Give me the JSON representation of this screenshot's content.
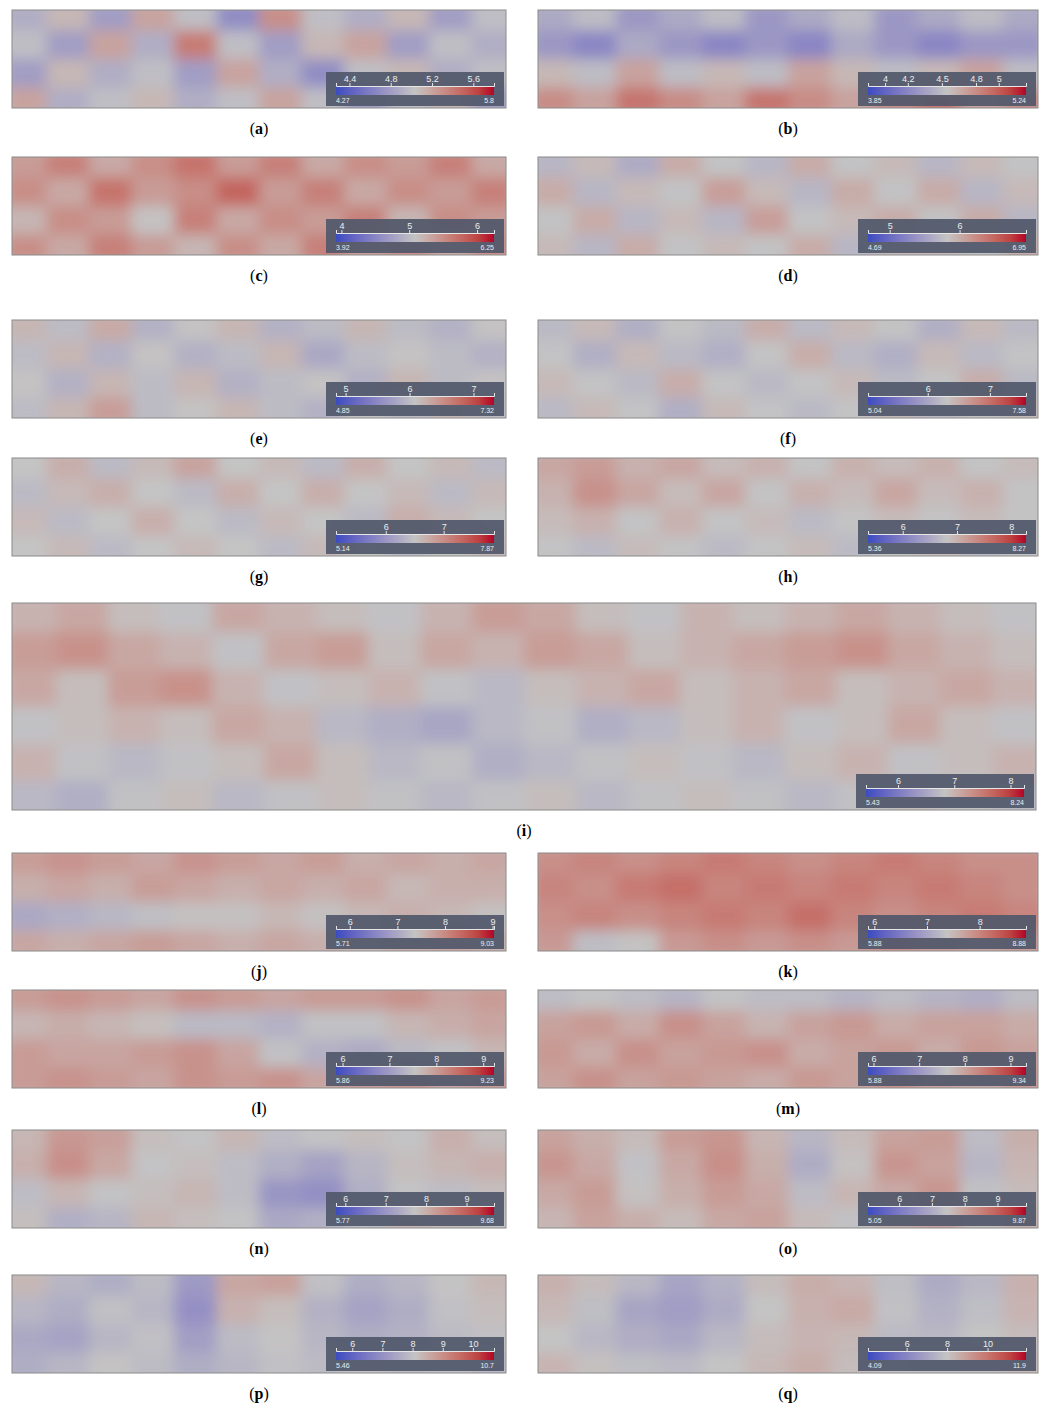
{
  "chart_data": [
    {
      "type": "heatmap",
      "title": "(a)",
      "tick_labels": false,
      "cells": [
        [
          4.9,
          5.1,
          4.8,
          5.2,
          5.0,
          4.7,
          5.3,
          5.0,
          4.9,
          5.1,
          4.8,
          5.0
        ],
        [
          5.0,
          4.8,
          5.2,
          4.9,
          5.4,
          5.0,
          4.8,
          5.1,
          5.2,
          4.8,
          5.0,
          4.9
        ],
        [
          4.8,
          5.1,
          4.9,
          5.0,
          4.8,
          5.2,
          4.9,
          4.7,
          5.0,
          5.1,
          4.9,
          5.0
        ],
        [
          5.2,
          4.9,
          5.0,
          5.1,
          4.9,
          5.0,
          5.2,
          5.0,
          4.8,
          5.0,
          5.1,
          4.8
        ]
      ],
      "colorbar": {
        "range": [
          4.27,
          5.8
        ],
        "ticks": [
          4.4,
          4.8,
          5.2,
          5.6
        ]
      }
    },
    {
      "type": "heatmap",
      "title": "(b)",
      "tick_labels": false,
      "cells": [
        [
          4.4,
          4.5,
          4.3,
          4.4,
          4.5,
          4.3,
          4.4,
          4.5,
          4.3,
          4.4,
          4.5,
          4.4
        ],
        [
          4.3,
          4.2,
          4.4,
          4.3,
          4.2,
          4.3,
          4.2,
          4.4,
          4.3,
          4.2,
          4.3,
          4.3
        ],
        [
          4.6,
          4.5,
          4.7,
          4.5,
          4.6,
          4.5,
          4.7,
          4.6,
          4.5,
          4.6,
          4.7,
          4.5
        ],
        [
          4.8,
          4.7,
          4.9,
          4.8,
          4.7,
          4.9,
          4.8,
          4.7,
          4.8,
          4.9,
          4.7,
          4.8
        ]
      ],
      "colorbar": {
        "range": [
          3.85,
          5.24
        ],
        "ticks": [
          4,
          4.2,
          4.5,
          4.8,
          5
        ]
      }
    },
    {
      "type": "heatmap",
      "title": "(c)",
      "tick_labels": false,
      "cells": [
        [
          5.4,
          5.6,
          5.3,
          5.5,
          5.7,
          5.4,
          5.6,
          5.3,
          5.5,
          5.4,
          5.6,
          5.3
        ],
        [
          5.5,
          5.3,
          5.7,
          5.4,
          5.5,
          5.8,
          5.4,
          5.6,
          5.3,
          5.5,
          5.4,
          5.6
        ],
        [
          5.2,
          5.5,
          5.4,
          5.1,
          5.6,
          5.3,
          5.5,
          5.4,
          5.6,
          5.2,
          5.5,
          5.4
        ],
        [
          5.5,
          5.3,
          5.6,
          5.4,
          5.2,
          5.5,
          5.3,
          5.6,
          5.4,
          5.5,
          5.3,
          5.5
        ]
      ],
      "colorbar": {
        "range": [
          3.92,
          6.25
        ],
        "ticks": [
          4,
          5,
          6
        ]
      }
    },
    {
      "type": "heatmap",
      "title": "(d)",
      "tick_labels": false,
      "cells": [
        [
          5.7,
          5.9,
          5.6,
          6.0,
          5.8,
          5.7,
          6.0,
          5.8,
          5.9,
          5.7,
          5.9,
          5.8
        ],
        [
          6.0,
          5.7,
          5.9,
          5.8,
          6.1,
          5.9,
          5.7,
          6.0,
          5.8,
          6.0,
          5.7,
          5.9
        ],
        [
          5.8,
          6.0,
          5.7,
          5.9,
          5.7,
          6.1,
          5.8,
          5.9,
          6.0,
          5.8,
          6.0,
          5.7
        ],
        [
          5.9,
          5.7,
          6.0,
          5.8,
          5.9,
          5.8,
          6.0,
          5.7,
          5.9,
          5.9,
          5.8,
          6.0
        ]
      ],
      "colorbar": {
        "range": [
          4.69,
          6.95
        ],
        "ticks": [
          5,
          6
        ]
      }
    },
    {
      "type": "heatmap",
      "title": "(e)",
      "tick_labels": false,
      "cells": [
        [
          6.2,
          6.0,
          6.3,
          5.9,
          6.1,
          6.2,
          5.9,
          6.0,
          6.2,
          6.0,
          5.9,
          6.1
        ],
        [
          6.0,
          6.2,
          5.9,
          6.1,
          5.9,
          6.0,
          6.2,
          5.8,
          6.0,
          6.1,
          6.0,
          5.9
        ],
        [
          6.1,
          5.9,
          6.2,
          6.0,
          6.2,
          5.9,
          6.0,
          6.1,
          5.9,
          6.2,
          6.0,
          6.1
        ],
        [
          6.0,
          6.2,
          6.4,
          6.0,
          6.1,
          6.2,
          6.0,
          5.9,
          6.1,
          6.0,
          6.2,
          6.0
        ]
      ],
      "colorbar": {
        "range": [
          4.85,
          7.32
        ],
        "ticks": [
          5,
          6,
          7
        ]
      }
    },
    {
      "type": "heatmap",
      "title": "(f)",
      "tick_labels": false,
      "cells": [
        [
          6.2,
          6.4,
          6.1,
          6.3,
          6.2,
          6.5,
          6.2,
          6.4,
          6.3,
          6.1,
          6.4,
          6.2
        ],
        [
          6.3,
          6.1,
          6.4,
          6.2,
          6.1,
          6.3,
          6.5,
          6.2,
          6.1,
          6.4,
          6.2,
          6.3
        ],
        [
          6.4,
          6.3,
          6.2,
          6.5,
          6.3,
          6.2,
          6.3,
          6.4,
          6.2,
          6.3,
          6.5,
          6.2
        ],
        [
          6.2,
          6.4,
          6.3,
          6.1,
          6.4,
          6.3,
          6.2,
          6.3,
          6.4,
          6.2,
          6.3,
          6.4
        ]
      ],
      "colorbar": {
        "range": [
          5.04,
          7.58
        ],
        "ticks": [
          6,
          7
        ]
      }
    },
    {
      "type": "heatmap",
      "title": "(g)",
      "tick_labels": false,
      "cells": [
        [
          6.5,
          6.7,
          6.4,
          6.6,
          6.8,
          6.5,
          6.6,
          6.4,
          6.7,
          6.5,
          6.6,
          6.4
        ],
        [
          6.4,
          6.6,
          6.7,
          6.5,
          6.4,
          6.7,
          6.5,
          6.7,
          6.5,
          6.6,
          6.4,
          6.6
        ],
        [
          6.6,
          6.4,
          6.5,
          6.7,
          6.5,
          6.4,
          6.6,
          6.5,
          6.4,
          6.7,
          6.6,
          6.5
        ],
        [
          6.5,
          6.6,
          6.4,
          6.5,
          6.6,
          6.5,
          6.4,
          6.6,
          6.5,
          6.4,
          6.5,
          6.6
        ]
      ],
      "colorbar": {
        "range": [
          5.14,
          7.87
        ],
        "ticks": [
          6,
          7
        ]
      }
    },
    {
      "type": "heatmap",
      "title": "(h)",
      "tick_labels": false,
      "cells": [
        [
          7.1,
          7.2,
          7.0,
          7.1,
          6.9,
          7.0,
          6.8,
          7.0,
          6.9,
          7.0,
          6.8,
          6.9
        ],
        [
          7.0,
          7.3,
          7.1,
          6.9,
          7.1,
          6.8,
          7.0,
          6.9,
          7.1,
          6.9,
          7.0,
          6.8
        ],
        [
          6.9,
          7.0,
          6.8,
          7.0,
          6.8,
          6.9,
          6.7,
          6.8,
          6.9,
          6.8,
          6.9,
          6.8
        ],
        [
          6.8,
          6.7,
          6.9,
          6.8,
          6.7,
          6.8,
          6.9,
          6.7,
          6.8,
          6.9,
          6.7,
          6.8
        ]
      ],
      "colorbar": {
        "range": [
          5.36,
          8.27
        ],
        "ticks": [
          6,
          7,
          8
        ]
      }
    },
    {
      "type": "heatmap",
      "title": "(i)",
      "tick_labels": false,
      "cells": [
        [
          7.0,
          7.1,
          6.9,
          6.8,
          7.1,
          7.0,
          6.9,
          6.8,
          7.0,
          7.2,
          7.1,
          6.9,
          6.8,
          7.0,
          6.9,
          7.0,
          7.1,
          7.0,
          6.9,
          6.8
        ],
        [
          7.2,
          7.3,
          7.1,
          7.0,
          6.8,
          7.1,
          7.2,
          6.9,
          7.1,
          7.0,
          7.2,
          7.1,
          6.9,
          7.0,
          7.1,
          7.2,
          7.3,
          7.1,
          7.0,
          6.9
        ],
        [
          7.1,
          6.9,
          7.2,
          7.3,
          7.0,
          6.8,
          6.9,
          7.0,
          6.8,
          6.7,
          6.9,
          7.0,
          7.1,
          6.9,
          7.0,
          7.1,
          6.9,
          7.0,
          7.1,
          7.0
        ],
        [
          6.8,
          6.9,
          7.0,
          6.9,
          7.1,
          7.0,
          6.7,
          6.6,
          6.5,
          6.7,
          6.8,
          6.6,
          6.7,
          6.9,
          7.0,
          6.8,
          6.9,
          7.1,
          6.9,
          6.8
        ],
        [
          7.0,
          6.8,
          6.7,
          6.8,
          6.9,
          7.1,
          6.9,
          6.7,
          6.8,
          6.6,
          6.7,
          6.8,
          6.9,
          6.8,
          6.7,
          6.9,
          7.0,
          6.8,
          6.9,
          7.0
        ],
        [
          6.7,
          6.6,
          6.8,
          6.9,
          6.7,
          6.8,
          6.9,
          6.8,
          6.7,
          6.8,
          6.9,
          6.7,
          6.8,
          6.9,
          6.8,
          6.7,
          6.8,
          6.9,
          6.8,
          6.7
        ]
      ],
      "colorbar": {
        "range": [
          5.43,
          8.24
        ],
        "ticks": [
          6,
          7,
          8
        ]
      }
    },
    {
      "type": "heatmap",
      "title": "(j)",
      "tick_labels": false,
      "cells": [
        [
          7.8,
          7.9,
          7.8,
          7.7,
          7.9,
          7.8,
          7.7,
          7.8,
          7.6,
          7.7,
          7.6,
          7.7
        ],
        [
          7.6,
          7.7,
          7.6,
          7.8,
          7.7,
          7.6,
          7.7,
          7.6,
          7.7,
          7.5,
          7.6,
          7.6
        ],
        [
          7.0,
          7.1,
          7.2,
          7.3,
          7.4,
          7.4,
          7.5,
          7.4,
          7.5,
          7.6,
          7.5,
          7.4
        ],
        [
          7.7,
          7.6,
          7.7,
          7.8,
          7.7,
          7.6,
          7.7,
          7.6,
          7.5,
          7.6,
          7.7,
          7.6
        ]
      ],
      "colorbar": {
        "range": [
          5.71,
          9.03
        ],
        "ticks": [
          6,
          7,
          8,
          9
        ]
      }
    },
    {
      "type": "heatmap",
      "title": "(k)",
      "tick_labels": false,
      "cells": [
        [
          7.9,
          8.0,
          7.9,
          8.0,
          8.1,
          8.0,
          7.9,
          8.0,
          8.1,
          8.0,
          7.9,
          7.9
        ],
        [
          8.0,
          7.9,
          8.1,
          8.2,
          8.0,
          8.1,
          8.0,
          8.1,
          8.0,
          8.1,
          8.0,
          7.9
        ],
        [
          7.9,
          8.0,
          7.9,
          8.0,
          8.1,
          8.0,
          8.2,
          8.0,
          7.9,
          8.0,
          8.1,
          8.0
        ],
        [
          7.8,
          7.3,
          7.4,
          7.8,
          7.9,
          7.8,
          7.9,
          7.8,
          7.9,
          7.8,
          7.7,
          7.8
        ]
      ],
      "colorbar": {
        "range": [
          5.88,
          8.88
        ],
        "ticks": [
          6,
          7,
          8
        ]
      }
    },
    {
      "type": "heatmap",
      "title": "(l)",
      "tick_labels": false,
      "cells": [
        [
          8.0,
          8.1,
          8.0,
          7.9,
          8.1,
          8.0,
          7.9,
          8.0,
          8.0,
          8.1,
          7.9,
          8.0
        ],
        [
          7.7,
          7.8,
          7.7,
          7.6,
          7.4,
          7.4,
          7.3,
          7.5,
          7.5,
          7.7,
          7.8,
          7.9
        ],
        [
          8.0,
          7.9,
          7.9,
          8.0,
          8.1,
          7.9,
          7.5,
          7.3,
          7.2,
          7.4,
          7.5,
          7.7
        ],
        [
          8.0,
          8.1,
          8.0,
          7.9,
          8.1,
          8.0,
          8.1,
          7.9,
          8.0,
          8.1,
          7.9,
          8.0
        ]
      ],
      "colorbar": {
        "range": [
          5.86,
          9.23
        ],
        "ticks": [
          6,
          7,
          8,
          9
        ]
      }
    },
    {
      "type": "heatmap",
      "title": "(m)",
      "tick_labels": false,
      "cells": [
        [
          7.5,
          7.6,
          7.5,
          7.4,
          7.6,
          7.5,
          7.5,
          7.4,
          7.5,
          7.4,
          7.3,
          7.5
        ],
        [
          8.0,
          8.1,
          7.9,
          8.2,
          8.0,
          7.8,
          8.0,
          8.1,
          7.9,
          8.0,
          8.0,
          7.9
        ],
        [
          8.1,
          7.9,
          8.2,
          8.0,
          8.1,
          8.2,
          7.9,
          8.0,
          8.1,
          7.9,
          8.1,
          8.0
        ],
        [
          8.0,
          8.2,
          8.0,
          8.1,
          8.0,
          7.9,
          8.1,
          8.0,
          8.2,
          8.0,
          7.9,
          8.1
        ]
      ],
      "colorbar": {
        "range": [
          5.88,
          9.34
        ],
        "ticks": [
          6,
          7,
          8,
          9
        ]
      }
    },
    {
      "type": "heatmap",
      "title": "(n)",
      "tick_labels": false,
      "cells": [
        [
          7.9,
          8.3,
          8.2,
          7.8,
          7.7,
          7.9,
          7.6,
          7.7,
          7.8,
          7.7,
          8.0,
          7.8
        ],
        [
          8.0,
          8.4,
          8.1,
          7.7,
          7.8,
          7.6,
          7.4,
          7.2,
          7.5,
          7.8,
          7.9,
          8.0
        ],
        [
          7.6,
          7.9,
          7.7,
          7.8,
          7.9,
          7.6,
          7.0,
          6.9,
          7.4,
          7.7,
          7.6,
          7.8
        ],
        [
          7.8,
          7.4,
          7.5,
          7.9,
          7.8,
          7.7,
          7.3,
          7.4,
          7.6,
          7.9,
          7.8,
          7.7
        ]
      ],
      "colorbar": {
        "range": [
          5.77,
          9.68
        ],
        "ticks": [
          6,
          7,
          8,
          9
        ]
      }
    },
    {
      "type": "heatmap",
      "title": "(o)",
      "tick_labels": false,
      "cells": [
        [
          8.0,
          7.8,
          7.6,
          8.1,
          8.2,
          7.7,
          7.2,
          7.6,
          8.0,
          8.1,
          7.3,
          7.8
        ],
        [
          8.2,
          7.9,
          7.4,
          7.9,
          8.3,
          7.8,
          7.0,
          7.5,
          8.2,
          8.0,
          7.2,
          7.7
        ],
        [
          7.9,
          8.1,
          7.5,
          7.8,
          8.1,
          7.9,
          7.3,
          7.7,
          7.9,
          8.2,
          7.4,
          7.6
        ],
        [
          7.7,
          8.0,
          7.8,
          7.6,
          7.9,
          8.0,
          7.6,
          7.4,
          7.8,
          8.0,
          7.5,
          7.8
        ]
      ],
      "colorbar": {
        "range": [
          5.05,
          9.87
        ],
        "ticks": [
          6,
          7,
          8,
          9
        ]
      }
    },
    {
      "type": "heatmap",
      "title": "(p)",
      "tick_labels": false,
      "cells": [
        [
          8.3,
          7.8,
          7.6,
          7.9,
          7.2,
          8.6,
          8.7,
          8.0,
          7.6,
          7.8,
          8.1,
          8.3
        ],
        [
          7.8,
          7.6,
          8.0,
          7.8,
          7.0,
          8.4,
          8.2,
          7.7,
          7.4,
          7.6,
          8.0,
          8.2
        ],
        [
          7.5,
          7.4,
          7.8,
          8.0,
          7.3,
          7.9,
          8.1,
          7.8,
          7.6,
          7.7,
          7.9,
          8.0
        ],
        [
          7.6,
          7.8,
          8.1,
          7.9,
          7.6,
          7.8,
          8.0,
          7.9,
          8.1,
          7.9,
          8.0,
          7.8
        ]
      ],
      "colorbar": {
        "range": [
          5.46,
          10.7
        ],
        "ticks": [
          6,
          7,
          8,
          9,
          10
        ]
      }
    },
    {
      "type": "heatmap",
      "title": "(q)",
      "tick_labels": false,
      "cells": [
        [
          8.5,
          8.2,
          7.6,
          7.0,
          7.4,
          8.2,
          8.6,
          8.4,
          7.8,
          7.2,
          7.6,
          8.5
        ],
        [
          8.3,
          7.8,
          7.0,
          6.8,
          7.2,
          8.0,
          8.5,
          8.7,
          7.9,
          7.4,
          7.8,
          8.4
        ],
        [
          8.0,
          7.6,
          7.3,
          7.1,
          7.6,
          8.2,
          8.4,
          8.3,
          7.7,
          7.6,
          8.0,
          8.2
        ],
        [
          8.4,
          8.1,
          7.8,
          7.7,
          8.0,
          8.3,
          8.6,
          8.2,
          8.0,
          7.9,
          8.1,
          8.3
        ]
      ],
      "colorbar": {
        "range": [
          4.09,
          11.9
        ],
        "ticks": [
          6,
          8,
          10
        ]
      }
    }
  ]
}
